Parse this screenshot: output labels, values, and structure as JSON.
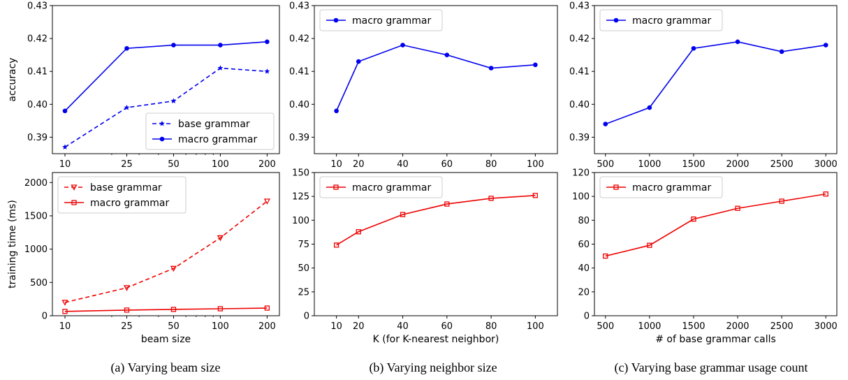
{
  "colors": {
    "blue": "#0000ee",
    "red": "#ee0000",
    "axis": "#000000"
  },
  "captions": [
    "(a) Varying beam size",
    "(b) Varying neighbor size",
    "(c) Varying base grammar usage count"
  ],
  "chart_data": [
    {
      "id": "a-top",
      "type": "line",
      "xscale": "log",
      "x": [
        10,
        25,
        50,
        100,
        200
      ],
      "xticks": [
        "10",
        "25",
        "50",
        "100",
        "200"
      ],
      "xlim": [
        8.3,
        240
      ],
      "ylabel": "accuracy",
      "xlabel": "",
      "ylim": [
        0.385,
        0.43
      ],
      "yticks": [
        0.39,
        0.4,
        0.41,
        0.42,
        0.43
      ],
      "yticklabels": [
        "0.39",
        "0.40",
        "0.41",
        "0.42",
        "0.43"
      ],
      "legend": "lower-right",
      "grid": false,
      "series": [
        {
          "name": "base grammar",
          "values": [
            0.387,
            0.399,
            0.401,
            0.411,
            0.41
          ],
          "color": "blue",
          "dash": true,
          "marker": "star"
        },
        {
          "name": "macro grammar",
          "values": [
            0.398,
            0.417,
            0.418,
            0.418,
            0.419
          ],
          "color": "blue",
          "dash": false,
          "marker": "circle"
        }
      ]
    },
    {
      "id": "b-top",
      "type": "line",
      "xscale": "linear",
      "x": [
        10,
        20,
        40,
        60,
        80,
        100
      ],
      "xticks": [
        "10",
        "20",
        "40",
        "60",
        "80",
        "100"
      ],
      "xlim": [
        0,
        110
      ],
      "ylabel": "",
      "xlabel": "",
      "ylim": [
        0.385,
        0.43
      ],
      "yticks": [
        0.39,
        0.4,
        0.41,
        0.42,
        0.43
      ],
      "yticklabels": [
        "0.39",
        "0.40",
        "0.41",
        "0.42",
        "0.43"
      ],
      "legend": "top-left",
      "grid": false,
      "series": [
        {
          "name": "macro grammar",
          "values": [
            0.398,
            0.413,
            0.418,
            0.415,
            0.411,
            0.412
          ],
          "color": "blue",
          "dash": false,
          "marker": "circle"
        }
      ]
    },
    {
      "id": "c-top",
      "type": "line",
      "xscale": "linear",
      "x": [
        500,
        1000,
        1500,
        2000,
        2500,
        3000
      ],
      "xticks": [
        "500",
        "1000",
        "1500",
        "2000",
        "2500",
        "3000"
      ],
      "xlim": [
        375,
        3125
      ],
      "ylabel": "",
      "xlabel": "",
      "ylim": [
        0.385,
        0.43
      ],
      "yticks": [
        0.39,
        0.4,
        0.41,
        0.42,
        0.43
      ],
      "yticklabels": [
        "0.39",
        "0.40",
        "0.41",
        "0.42",
        "0.43"
      ],
      "legend": "top-left",
      "grid": false,
      "series": [
        {
          "name": "macro grammar",
          "values": [
            0.394,
            0.399,
            0.417,
            0.419,
            0.416,
            0.418
          ],
          "color": "blue",
          "dash": false,
          "marker": "circle"
        }
      ]
    },
    {
      "id": "a-bottom",
      "type": "line",
      "xscale": "log",
      "x": [
        10,
        25,
        50,
        100,
        200
      ],
      "xticks": [
        "10",
        "25",
        "50",
        "100",
        "200"
      ],
      "xlim": [
        8.3,
        240
      ],
      "ylabel": "training time (ms)",
      "xlabel": "beam size",
      "ylim": [
        0,
        2150
      ],
      "yticks": [
        0,
        500,
        1000,
        1500,
        2000
      ],
      "yticklabels": [
        "0",
        "500",
        "1000",
        "1500",
        "2000"
      ],
      "legend": "top-left",
      "grid": false,
      "series": [
        {
          "name": "base grammar",
          "values": [
            200,
            420,
            710,
            1170,
            1720
          ],
          "color": "red",
          "dash": true,
          "marker": "triangle-down"
        },
        {
          "name": "macro grammar",
          "values": [
            65,
            85,
            95,
            105,
            115
          ],
          "color": "red",
          "dash": false,
          "marker": "square"
        }
      ]
    },
    {
      "id": "b-bottom",
      "type": "line",
      "xscale": "linear",
      "x": [
        10,
        20,
        40,
        60,
        80,
        100
      ],
      "xticks": [
        "10",
        "20",
        "40",
        "60",
        "80",
        "100"
      ],
      "xlim": [
        0,
        110
      ],
      "ylabel": "",
      "xlabel": "K (for K-nearest neighbor)",
      "ylim": [
        0,
        150
      ],
      "yticks": [
        0,
        25,
        50,
        75,
        100,
        125,
        150
      ],
      "yticklabels": [
        "0",
        "25",
        "50",
        "75",
        "100",
        "125",
        "150"
      ],
      "legend": "top-left",
      "grid": false,
      "series": [
        {
          "name": "macro grammar",
          "values": [
            74,
            88,
            106,
            117,
            123,
            126
          ],
          "color": "red",
          "dash": false,
          "marker": "square"
        }
      ]
    },
    {
      "id": "c-bottom",
      "type": "line",
      "xscale": "linear",
      "x": [
        500,
        1000,
        1500,
        2000,
        2500,
        3000
      ],
      "xticks": [
        "500",
        "1000",
        "1500",
        "2000",
        "2500",
        "3000"
      ],
      "xlim": [
        375,
        3125
      ],
      "ylabel": "",
      "xlabel": "# of base grammar calls",
      "ylim": [
        0,
        120
      ],
      "yticks": [
        0,
        20,
        40,
        60,
        80,
        100,
        120
      ],
      "yticklabels": [
        "0",
        "20",
        "40",
        "60",
        "80",
        "100",
        "120"
      ],
      "legend": "top-left",
      "grid": false,
      "series": [
        {
          "name": "macro grammar",
          "values": [
            50,
            59,
            81,
            90,
            96,
            102
          ],
          "color": "red",
          "dash": false,
          "marker": "square"
        }
      ]
    }
  ]
}
